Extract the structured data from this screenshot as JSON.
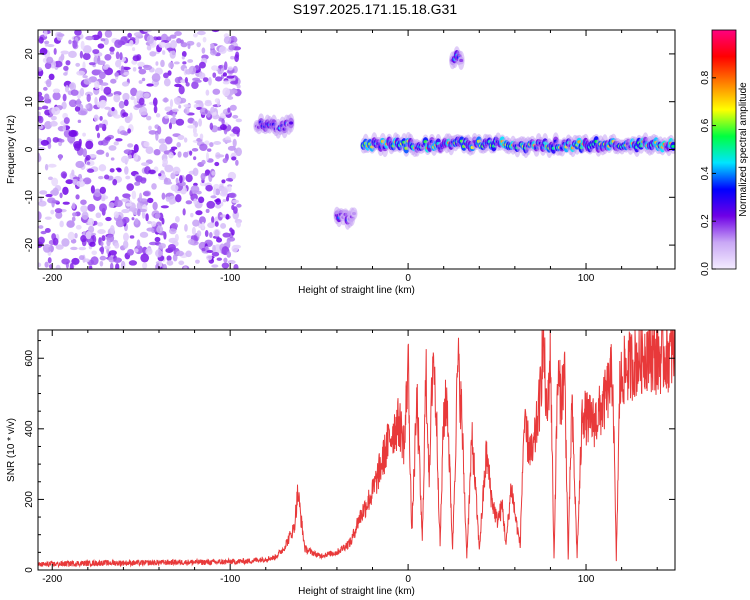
{
  "title": "S197.2025.171.15.18.G31",
  "chart_data": [
    {
      "type": "heatmap",
      "xlabel": "Height of straight line (km)",
      "ylabel": "Frequency (Hz)",
      "xlim": [
        -208,
        150
      ],
      "ylim": [
        -25,
        25
      ],
      "xticks": [
        -200,
        -100,
        0,
        100
      ],
      "yticks": [
        -20,
        -10,
        0,
        10,
        20
      ],
      "colorbar": {
        "label": "Normalized spectral amplitude",
        "range": [
          0,
          1
        ],
        "ticks": [
          0.0,
          0.2,
          0.4,
          0.6,
          0.8
        ],
        "tick_labels": [
          "0.0",
          "0.2",
          "0.4",
          "0.6",
          "0.8"
        ],
        "colors": [
          "#f4ecff",
          "#c9a8f5",
          "#6f00e6",
          "#0000ff",
          "#00e5ff",
          "#00ff40",
          "#ffff00",
          "#ff8000",
          "#ff0000",
          "#ff0080"
        ]
      },
      "features": [
        {
          "x_range": [
            -208,
            -95
          ],
          "y_range": [
            -25,
            25
          ],
          "amplitude": 0.18,
          "note": "scattered noise"
        },
        {
          "x_range": [
            -85,
            -65
          ],
          "y": 5,
          "amplitude": 0.35
        },
        {
          "x_range": [
            -40,
            -30
          ],
          "y": -14,
          "amplitude": 0.3
        },
        {
          "x_range": [
            -25,
            150
          ],
          "y": 1,
          "amplitude": 0.6
        },
        {
          "x_range": [
            25,
            30
          ],
          "y": 19,
          "amplitude": 0.45
        }
      ]
    },
    {
      "type": "line",
      "xlabel": "Height of straight line (km)",
      "ylabel": "SNR (10 * v/v)",
      "xlim": [
        -208,
        150
      ],
      "ylim": [
        0,
        680
      ],
      "xticks": [
        -200,
        -100,
        0,
        100
      ],
      "yticks": [
        0,
        200,
        400,
        600
      ],
      "line_color": "#e8393a",
      "series": [
        {
          "x": [
            -208,
            -190,
            -170,
            -150,
            -130,
            -110,
            -90,
            -75,
            -70,
            -64,
            -62,
            -58,
            -50,
            -40,
            -32,
            -28,
            -20,
            -15,
            -10,
            -5,
            -2,
            0,
            2,
            5,
            8,
            10,
            12,
            14,
            16,
            18,
            20,
            22,
            25,
            28,
            30,
            33,
            36,
            40,
            44,
            47,
            50,
            53,
            55,
            58,
            60,
            63,
            65,
            70,
            74,
            76,
            78,
            80,
            82,
            84,
            86,
            88,
            90,
            92,
            95,
            98,
            100,
            105,
            110,
            115,
            117,
            119,
            121,
            125,
            130,
            135,
            140,
            145,
            150
          ],
          "y": [
            15,
            18,
            20,
            20,
            22,
            22,
            25,
            35,
            60,
            120,
            220,
            60,
            40,
            50,
            80,
            140,
            220,
            300,
            380,
            420,
            350,
            600,
            100,
            480,
            80,
            560,
            250,
            630,
            420,
            70,
            440,
            480,
            60,
            590,
            450,
            40,
            380,
            60,
            330,
            200,
            140,
            180,
            70,
            240,
            160,
            70,
            400,
            320,
            480,
            660,
            420,
            630,
            30,
            540,
            490,
            560,
            30,
            470,
            40,
            460,
            430,
            420,
            470,
            560,
            30,
            520,
            560,
            580,
            600,
            620,
            600,
            610,
            620
          ]
        }
      ]
    }
  ]
}
